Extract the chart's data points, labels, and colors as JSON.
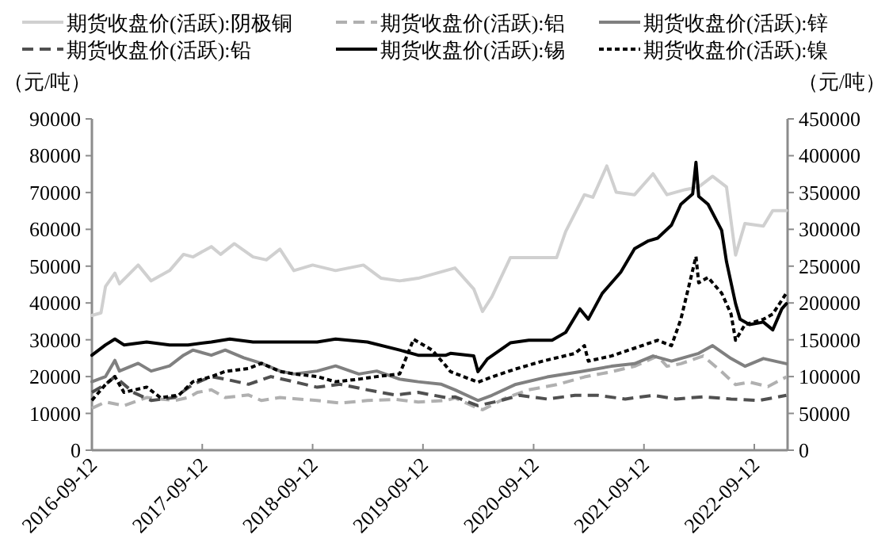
{
  "chart_data": {
    "type": "line",
    "legend": "top",
    "ylabel": "（元/吨）",
    "y2label": "（元/吨）",
    "xlim": [
      "2016-09-12",
      "2022-12-31"
    ],
    "xticks": [
      "2016-09-12",
      "2017-09-12",
      "2018-09-12",
      "2019-09-12",
      "2020-09-12",
      "2021-09-12",
      "2022-09-12"
    ],
    "ylim": [
      0,
      90000
    ],
    "yticks": [
      0,
      10000,
      20000,
      30000,
      40000,
      50000,
      60000,
      70000,
      80000,
      90000
    ],
    "y2lim": [
      0,
      450000
    ],
    "y2ticks": [
      0,
      50000,
      100000,
      150000,
      200000,
      250000,
      300000,
      350000,
      400000,
      450000
    ],
    "series": [
      {
        "name": "期货收盘价(活跃):阴极铜",
        "color": "#d0d0d0",
        "line_style": "solid",
        "x": [
          "2016-09-12",
          "2016-10-12",
          "2016-10-27",
          "2016-11-27",
          "2016-12-12",
          "2017-02-12",
          "2017-03-27",
          "2017-05-27",
          "2017-07-12",
          "2017-08-12",
          "2017-10-12",
          "2017-11-12",
          "2017-12-27",
          "2018-02-27",
          "2018-04-12",
          "2018-05-27",
          "2018-07-12",
          "2018-09-12",
          "2018-11-27",
          "2019-02-27",
          "2019-04-27",
          "2019-06-27",
          "2019-08-27",
          "2019-12-27",
          "2020-02-27",
          "2020-03-27",
          "2020-04-27",
          "2020-06-27",
          "2020-08-27",
          "2020-11-27",
          "2020-12-27",
          "2021-02-27",
          "2021-03-27",
          "2021-05-12",
          "2021-06-12",
          "2021-08-12",
          "2021-10-12",
          "2021-11-27",
          "2022-01-27",
          "2022-03-12",
          "2022-04-27",
          "2022-06-12",
          "2022-07-12",
          "2022-08-12",
          "2022-10-12",
          "2022-11-12",
          "2022-12-27"
        ],
        "values": [
          36600,
          37300,
          44500,
          48100,
          45200,
          50300,
          46000,
          48800,
          53200,
          52500,
          55300,
          53200,
          56100,
          52500,
          51700,
          54600,
          48800,
          50300,
          48800,
          50300,
          46700,
          46000,
          46700,
          49500,
          43800,
          37700,
          41700,
          52300,
          52300,
          52300,
          59400,
          69400,
          68700,
          77200,
          70100,
          69400,
          75100,
          69400,
          70800,
          71500,
          74400,
          71500,
          53000,
          61600,
          60900,
          65100,
          65100
        ]
      },
      {
        "name": "期货收盘价(活跃):铝",
        "color": "#b0b0b0",
        "line_style": "dashed",
        "x": [
          "2016-09-12",
          "2016-10-27",
          "2016-12-27",
          "2017-03-12",
          "2017-06-12",
          "2017-07-27",
          "2017-08-27",
          "2017-10-12",
          "2017-11-27",
          "2018-02-12",
          "2018-03-27",
          "2018-05-27",
          "2018-07-12",
          "2018-09-27",
          "2018-12-12",
          "2019-03-12",
          "2019-06-12",
          "2019-08-27",
          "2019-11-27",
          "2019-12-27",
          "2020-03-12",
          "2020-03-27",
          "2020-06-12",
          "2020-08-27",
          "2020-11-27",
          "2021-02-27",
          "2021-05-27",
          "2021-08-12",
          "2021-10-27",
          "2021-11-27",
          "2022-01-12",
          "2022-03-27",
          "2022-05-27",
          "2022-07-12",
          "2022-08-27",
          "2022-10-27",
          "2022-12-27"
        ],
        "values": [
          11400,
          13100,
          12100,
          14300,
          13500,
          14300,
          15700,
          16400,
          14300,
          15000,
          13500,
          14300,
          14000,
          13500,
          12800,
          13500,
          13800,
          13100,
          13500,
          14200,
          11400,
          11000,
          14200,
          16400,
          17800,
          19900,
          21300,
          22800,
          25600,
          22800,
          23500,
          25600,
          21300,
          17800,
          18500,
          17300,
          19900
        ]
      },
      {
        "name": "期货收盘价(活跃):锌",
        "color": "#808080",
        "line_style": "solid",
        "x": [
          "2016-09-12",
          "2016-10-27",
          "2016-11-27",
          "2016-12-12",
          "2017-02-12",
          "2017-03-27",
          "2017-05-27",
          "2017-07-12",
          "2017-08-12",
          "2017-10-12",
          "2017-11-27",
          "2018-01-27",
          "2018-03-27",
          "2018-05-27",
          "2018-07-12",
          "2018-09-27",
          "2018-11-27",
          "2019-02-12",
          "2019-04-12",
          "2019-06-27",
          "2019-08-27",
          "2019-11-12",
          "2019-12-27",
          "2020-03-12",
          "2020-04-27",
          "2020-07-12",
          "2020-10-27",
          "2021-02-12",
          "2021-05-27",
          "2021-08-12",
          "2021-10-12",
          "2021-12-12",
          "2022-03-12",
          "2022-04-27",
          "2022-06-27",
          "2022-08-12",
          "2022-10-12",
          "2022-12-27"
        ],
        "values": [
          18600,
          20000,
          24400,
          21500,
          23600,
          21500,
          22900,
          25800,
          27200,
          25800,
          27200,
          25100,
          23600,
          21500,
          20700,
          21500,
          22900,
          20700,
          21500,
          19300,
          18600,
          17900,
          16400,
          13500,
          14900,
          17800,
          19900,
          21300,
          22800,
          23500,
          25600,
          24200,
          26300,
          28400,
          24900,
          22800,
          24900,
          23500
        ]
      },
      {
        "name": "期货收盘价(活跃):铅",
        "color": "#505050",
        "line_style": "dashed",
        "x": [
          "2016-09-12",
          "2016-10-27",
          "2016-11-27",
          "2017-01-27",
          "2017-03-27",
          "2017-06-12",
          "2017-08-12",
          "2017-10-12",
          "2017-11-27",
          "2018-02-12",
          "2018-04-27",
          "2018-07-12",
          "2018-09-27",
          "2018-12-12",
          "2019-03-12",
          "2019-06-12",
          "2019-08-27",
          "2019-11-27",
          "2019-12-27",
          "2020-03-12",
          "2020-05-27",
          "2020-07-27",
          "2020-10-27",
          "2021-01-27",
          "2021-04-12",
          "2021-07-12",
          "2021-10-12",
          "2021-12-27",
          "2022-03-27",
          "2022-06-27",
          "2022-09-27",
          "2022-12-27"
        ],
        "values": [
          15700,
          17900,
          20000,
          15700,
          13500,
          14300,
          17900,
          20000,
          19300,
          17900,
          20000,
          18600,
          17100,
          17900,
          16400,
          15000,
          15700,
          14300,
          14500,
          12100,
          13500,
          14900,
          13900,
          14900,
          14900,
          13900,
          14900,
          13900,
          14500,
          13900,
          13500,
          14900
        ]
      },
      {
        "name": "期货收盘价(活跃):锡",
        "color": "#000000",
        "line_style": "solid",
        "axis": "y2",
        "x": [
          "2016-09-12",
          "2016-10-27",
          "2016-11-27",
          "2016-12-27",
          "2017-03-12",
          "2017-05-27",
          "2017-07-27",
          "2017-10-12",
          "2017-12-12",
          "2018-02-27",
          "2018-04-27",
          "2018-07-12",
          "2018-09-27",
          "2018-11-27",
          "2019-03-12",
          "2019-06-27",
          "2019-08-27",
          "2019-11-27",
          "2019-12-12",
          "2020-02-27",
          "2020-03-12",
          "2020-04-12",
          "2020-06-27",
          "2020-08-27",
          "2020-11-12",
          "2020-12-27",
          "2021-02-12",
          "2021-03-12",
          "2021-04-27",
          "2021-06-27",
          "2021-08-12",
          "2021-09-27",
          "2021-10-27",
          "2021-12-12",
          "2022-01-12",
          "2022-02-20",
          "2022-03-03",
          "2022-03-12",
          "2022-04-12",
          "2022-05-27",
          "2022-06-12",
          "2022-07-12",
          "2022-07-27",
          "2022-08-27",
          "2022-10-12",
          "2022-11-12",
          "2022-12-12",
          "2022-12-27"
        ],
        "values": [
          129000,
          143000,
          151000,
          143000,
          147000,
          143000,
          143000,
          147000,
          151000,
          147000,
          147000,
          147000,
          147000,
          151000,
          147000,
          136000,
          129000,
          129000,
          131500,
          128000,
          106700,
          124000,
          145800,
          149300,
          149300,
          160000,
          192000,
          178000,
          213000,
          241700,
          273700,
          284400,
          288000,
          305700,
          334000,
          348000,
          391000,
          344800,
          334000,
          298600,
          256000,
          199000,
          177800,
          170600,
          174000,
          163500,
          192000,
          199000
        ]
      },
      {
        "name": "期货收盘价(活跃):镍",
        "color": "#000000",
        "line_style": "dotted",
        "axis": "y2",
        "x": [
          "2016-09-12",
          "2016-10-27",
          "2016-11-27",
          "2016-12-27",
          "2017-03-12",
          "2017-04-27",
          "2017-06-27",
          "2017-08-12",
          "2017-10-12",
          "2017-11-27",
          "2018-02-12",
          "2018-03-27",
          "2018-05-27",
          "2018-07-12",
          "2018-09-27",
          "2018-11-27",
          "2019-02-12",
          "2019-04-12",
          "2019-06-27",
          "2019-08-12",
          "2019-10-12",
          "2019-11-27",
          "2019-12-12",
          "2020-03-12",
          "2020-04-27",
          "2020-07-12",
          "2020-10-12",
          "2021-01-27",
          "2021-02-27",
          "2021-03-12",
          "2021-05-27",
          "2021-08-12",
          "2021-10-27",
          "2021-12-12",
          "2022-01-12",
          "2022-03-03",
          "2022-03-12",
          "2022-04-12",
          "2022-05-27",
          "2022-06-27",
          "2022-07-12",
          "2022-08-12",
          "2022-10-12",
          "2022-11-12",
          "2022-12-27"
        ],
        "values": [
          67700,
          89300,
          100000,
          78500,
          85700,
          71300,
          75000,
          93000,
          100000,
          107000,
          111000,
          118000,
          107000,
          103700,
          100000,
          93000,
          96500,
          100000,
          103700,
          150600,
          136000,
          114500,
          106700,
          92400,
          99500,
          110000,
          121000,
          131500,
          142000,
          121000,
          128000,
          138600,
          149300,
          142000,
          177800,
          263000,
          227500,
          234600,
          213300,
          185000,
          149300,
          170600,
          177800,
          185000,
          213300
        ]
      }
    ]
  }
}
